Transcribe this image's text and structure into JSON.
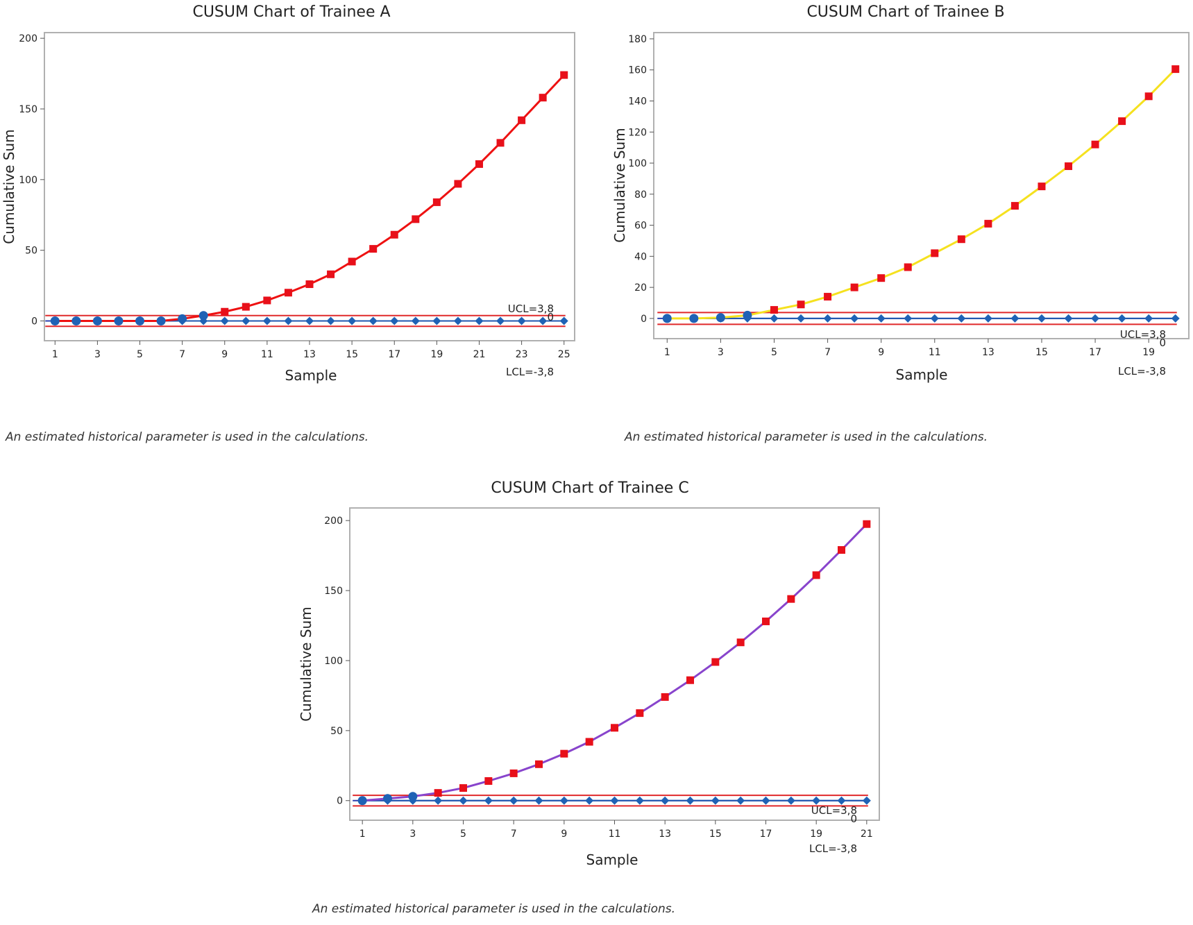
{
  "charts": [
    {
      "title": "CUSUM Chart of Trainee A",
      "xlabel": "Sample",
      "ylabel": "Cumulative Sum",
      "note": "An estimated historical parameter is used in the calculations.",
      "ucl_label": "UCL=3,8",
      "lcl_label": "LCL=-3,8",
      "center_label": "0"
    },
    {
      "title": "CUSUM Chart of Trainee B",
      "xlabel": "Sample",
      "ylabel": "Cumulative Sum",
      "note": "An estimated historical parameter is used in the calculations.",
      "ucl_label": "UCL=3,8",
      "lcl_label": "LCL=-3,8",
      "center_label": "0"
    },
    {
      "title": "CUSUM Chart of Trainee C",
      "xlabel": "Sample",
      "ylabel": "Cumulative Sum",
      "note": "An estimated historical parameter is used in the calculations.",
      "ucl_label": "UCL=3,8",
      "lcl_label": "LCL=-3,8",
      "center_label": "0"
    }
  ],
  "chart_data": [
    {
      "type": "line",
      "title": "CUSUM Chart of Trainee A",
      "xlabel": "Sample",
      "ylabel": "Cumulative Sum",
      "x": [
        1,
        2,
        3,
        4,
        5,
        6,
        7,
        8,
        9,
        10,
        11,
        12,
        13,
        14,
        15,
        16,
        17,
        18,
        19,
        20,
        21,
        22,
        23,
        24,
        25
      ],
      "xticks": [
        1,
        3,
        5,
        7,
        9,
        11,
        13,
        15,
        17,
        19,
        21,
        23,
        25
      ],
      "yticks": [
        0,
        50,
        100,
        150,
        200
      ],
      "xlim": [
        0.5,
        25.5
      ],
      "ylim": [
        -14,
        204
      ],
      "ucl": 3.8,
      "lcl": -3.8,
      "limit_color": "#e0282a",
      "line_color": "#ee1111",
      "upper_cusum": [
        0,
        0,
        0,
        0,
        0,
        0,
        1.5,
        3.8,
        6.5,
        10,
        14.5,
        20,
        26,
        33,
        42,
        51,
        61,
        72,
        84,
        97,
        111,
        126,
        142,
        158,
        174
      ],
      "lower_cusum": [
        0,
        0,
        0,
        0,
        0,
        0,
        0,
        0,
        0,
        0,
        0,
        0,
        0,
        0,
        0,
        0,
        0,
        0,
        0,
        0,
        0,
        0,
        0,
        0,
        0
      ]
    },
    {
      "type": "line",
      "title": "CUSUM Chart of Trainee B",
      "xlabel": "Sample",
      "ylabel": "Cumulative Sum",
      "x": [
        1,
        2,
        3,
        4,
        5,
        6,
        7,
        8,
        9,
        10,
        11,
        12,
        13,
        14,
        15,
        16,
        17,
        18,
        19,
        20
      ],
      "xticks": [
        1,
        3,
        5,
        7,
        9,
        11,
        13,
        15,
        17,
        19
      ],
      "yticks": [
        0,
        20,
        40,
        60,
        80,
        100,
        120,
        140,
        160,
        180
      ],
      "xlim": [
        0.5,
        20.5
      ],
      "ylim": [
        -13,
        184
      ],
      "ucl": 3.8,
      "lcl": -3.8,
      "limit_color": "#e0282a",
      "line_color": "#f5e11f",
      "upper_cusum": [
        0,
        0,
        0.5,
        2,
        5.5,
        9,
        14,
        20,
        26,
        33,
        42,
        51,
        61,
        72.5,
        85,
        98,
        112,
        127,
        143,
        160.5
      ],
      "lower_cusum": [
        0,
        0,
        0,
        0,
        0,
        0,
        0,
        0,
        0,
        0,
        0,
        0,
        0,
        0,
        0,
        0,
        0,
        0,
        0,
        0
      ]
    },
    {
      "type": "line",
      "title": "CUSUM Chart of Trainee C",
      "xlabel": "Sample",
      "ylabel": "Cumulative Sum",
      "x": [
        1,
        2,
        3,
        4,
        5,
        6,
        7,
        8,
        9,
        10,
        11,
        12,
        13,
        14,
        15,
        16,
        17,
        18,
        19,
        20,
        21
      ],
      "xticks": [
        1,
        3,
        5,
        7,
        9,
        11,
        13,
        15,
        17,
        19,
        21
      ],
      "yticks": [
        0,
        50,
        100,
        150,
        200
      ],
      "xlim": [
        0.5,
        21.5
      ],
      "ylim": [
        -14,
        209
      ],
      "ucl": 3.8,
      "lcl": -3.8,
      "limit_color": "#e0282a",
      "line_color": "#8844cc",
      "upper_cusum": [
        0,
        1.5,
        3,
        5.5,
        9,
        14,
        19.5,
        26,
        33.5,
        42,
        52,
        62.5,
        74,
        86,
        99,
        113,
        128,
        144,
        161,
        179,
        197.5
      ],
      "lower_cusum": [
        0,
        0,
        0,
        0,
        0,
        0,
        0,
        0,
        0,
        0,
        0,
        0,
        0,
        0,
        0,
        0,
        0,
        0,
        0,
        0,
        0
      ]
    }
  ]
}
